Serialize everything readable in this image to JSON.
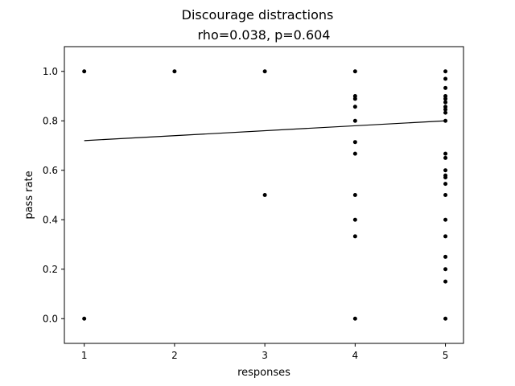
{
  "chart_data": {
    "type": "scatter",
    "title": "Discourage distractions",
    "subtitle": "rho=0.038, p=0.604",
    "xlabel": "responses",
    "ylabel": "pass rate",
    "xlim": [
      0.78,
      5.2
    ],
    "ylim": [
      -0.1,
      1.1
    ],
    "xticks": [
      "1",
      "2",
      "3",
      "4",
      "5"
    ],
    "yticks": [
      "0.0",
      "0.2",
      "0.4",
      "0.6",
      "0.8",
      "1.0"
    ],
    "grid": false,
    "point_color": "#000000",
    "fit_line": {
      "x": [
        1,
        5
      ],
      "y": [
        0.72,
        0.8
      ]
    },
    "points": [
      {
        "x": 1,
        "y": 1.0
      },
      {
        "x": 1,
        "y": 0.0
      },
      {
        "x": 2,
        "y": 1.0
      },
      {
        "x": 3,
        "y": 1.0
      },
      {
        "x": 3,
        "y": 0.5
      },
      {
        "x": 4,
        "y": 1.0
      },
      {
        "x": 4,
        "y": 0.9
      },
      {
        "x": 4,
        "y": 0.889
      },
      {
        "x": 4,
        "y": 0.857
      },
      {
        "x": 4,
        "y": 0.8
      },
      {
        "x": 4,
        "y": 0.714
      },
      {
        "x": 4,
        "y": 0.667
      },
      {
        "x": 4,
        "y": 0.5
      },
      {
        "x": 4,
        "y": 0.4
      },
      {
        "x": 4,
        "y": 0.333
      },
      {
        "x": 4,
        "y": 0.0
      },
      {
        "x": 5,
        "y": 1.0
      },
      {
        "x": 5,
        "y": 0.97
      },
      {
        "x": 5,
        "y": 0.933
      },
      {
        "x": 5,
        "y": 0.9
      },
      {
        "x": 5,
        "y": 0.889
      },
      {
        "x": 5,
        "y": 0.875
      },
      {
        "x": 5,
        "y": 0.857
      },
      {
        "x": 5,
        "y": 0.846
      },
      {
        "x": 5,
        "y": 0.833
      },
      {
        "x": 5,
        "y": 0.8
      },
      {
        "x": 5,
        "y": 0.667
      },
      {
        "x": 5,
        "y": 0.65
      },
      {
        "x": 5,
        "y": 0.6
      },
      {
        "x": 5,
        "y": 0.579
      },
      {
        "x": 5,
        "y": 0.571
      },
      {
        "x": 5,
        "y": 0.545
      },
      {
        "x": 5,
        "y": 0.5
      },
      {
        "x": 5,
        "y": 0.4
      },
      {
        "x": 5,
        "y": 0.333
      },
      {
        "x": 5,
        "y": 0.25
      },
      {
        "x": 5,
        "y": 0.2
      },
      {
        "x": 5,
        "y": 0.15
      },
      {
        "x": 5,
        "y": 0.0
      }
    ]
  }
}
